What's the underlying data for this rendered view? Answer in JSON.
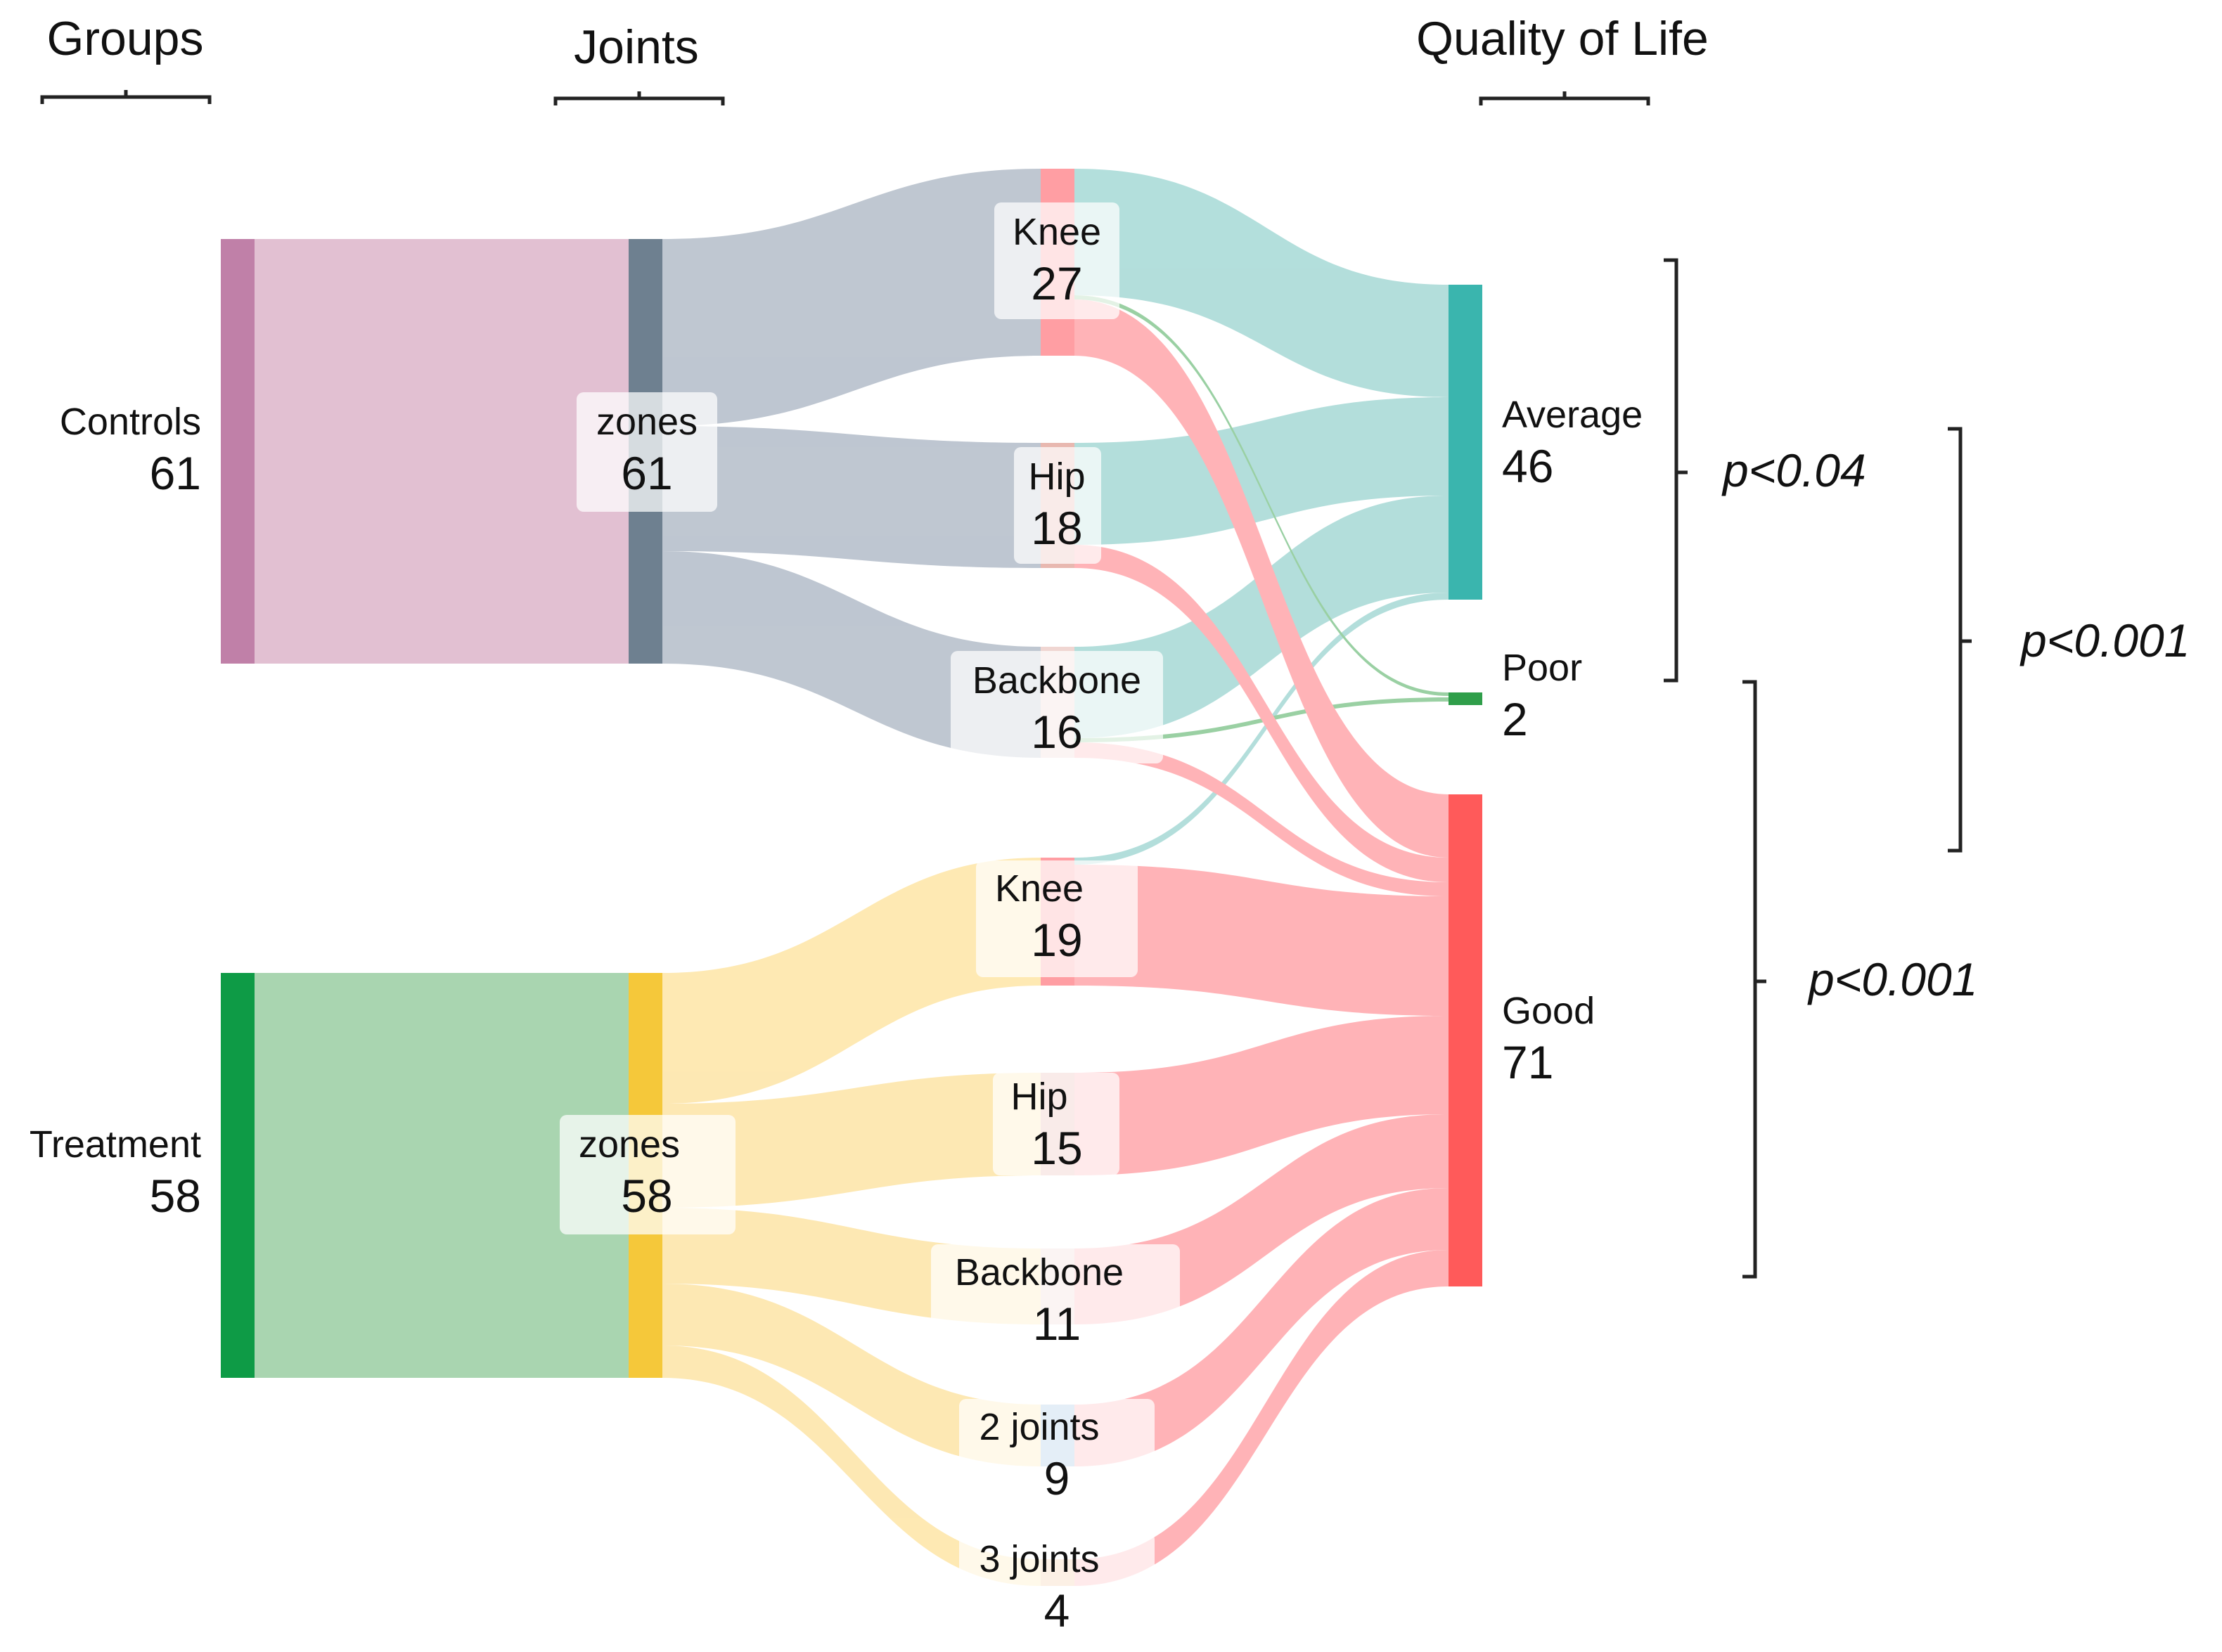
{
  "columns": [
    "Groups",
    "Joints",
    "Quality of Life"
  ],
  "groups": [
    {
      "id": "controls",
      "label": "Controls",
      "value": "61",
      "color": "#c080a8",
      "band": "#e2c0d2"
    },
    {
      "id": "treatment",
      "label": "Treatment",
      "value": "58",
      "color": "#0e9b46",
      "band": "#a9d5b0"
    }
  ],
  "zones": [
    {
      "id": "zones-controls",
      "label": "zones",
      "value": "61",
      "color": "#6e8090"
    },
    {
      "id": "zones-treatment",
      "label": "zones",
      "value": "58",
      "color": "#f5c83a"
    }
  ],
  "joints": [
    {
      "id": "knee-c",
      "label": "Knee",
      "value": "27",
      "group": "controls"
    },
    {
      "id": "hip-c",
      "label": "Hip",
      "value": "18",
      "group": "controls"
    },
    {
      "id": "backbone-c",
      "label": "Backbone",
      "value": "16",
      "group": "controls"
    },
    {
      "id": "knee-t",
      "label": "Knee",
      "value": "19",
      "group": "treatment"
    },
    {
      "id": "hip-t",
      "label": "Hip",
      "value": "15",
      "group": "treatment"
    },
    {
      "id": "backbone-t",
      "label": "Backbone",
      "value": "11",
      "group": "treatment"
    },
    {
      "id": "twojoints-t",
      "label": "2 joints",
      "value": "9",
      "group": "treatment"
    },
    {
      "id": "threejoints-t",
      "label": "3 joints",
      "value": "4",
      "group": "treatment"
    }
  ],
  "outcomes": [
    {
      "id": "average",
      "label": "Average",
      "value": "46",
      "color": "#3ab5ae"
    },
    {
      "id": "poor",
      "label": "Poor",
      "value": "2",
      "color": "#2f9e4a"
    },
    {
      "id": "good",
      "label": "Good",
      "value": "71",
      "color": "#ff5a5a"
    }
  ],
  "flow_colors": {
    "controls_zone": "#a9b4c2",
    "treatment_zone": "#fde19a",
    "average": "#9ed6d2",
    "poor": "#7ec48a",
    "good": "#ff9ea3"
  },
  "joint_node_colors": {
    "knee": "#ff9ea3",
    "hip": "#e8b8b0",
    "backbone": "#f0d6d2",
    "two": "#9ec0e0",
    "three": "#f5c8a0"
  },
  "significance": [
    {
      "id": "avg-poor",
      "label": "p<0.04"
    },
    {
      "id": "avg-good",
      "label": "p<0.001"
    },
    {
      "id": "poor-good",
      "label": "p<0.001"
    }
  ]
}
